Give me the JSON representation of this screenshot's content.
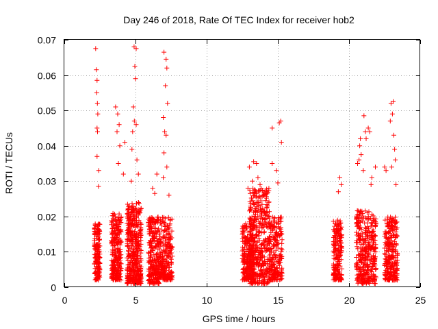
{
  "chart_data": {
    "type": "scatter",
    "title": "Day 246 of 2018, Rate Of TEC Index for receiver hob2",
    "xlabel": "GPS time / hours",
    "ylabel": "ROTI / TECUs",
    "xlim": [
      0,
      25
    ],
    "ylim": [
      0,
      0.07
    ],
    "x_ticks": [
      0,
      5,
      10,
      15,
      20,
      25
    ],
    "x_tick_labels": [
      "0",
      "5",
      "10",
      "15",
      "20",
      "25"
    ],
    "y_ticks": [
      0,
      0.01,
      0.02,
      0.03,
      0.04,
      0.05,
      0.06,
      0.07
    ],
    "y_tick_labels": [
      "0",
      "0.01",
      "0.02",
      "0.03",
      "0.04",
      "0.05",
      "0.06",
      "0.07"
    ],
    "grid": true,
    "marker": "+",
    "color": "#ff0000",
    "series": [
      {
        "name": "ROTI",
        "clusters": [
          {
            "x": [
              2.1,
              2.5
            ],
            "y": [
              0.002,
              0.018
            ],
            "n": 160
          },
          {
            "x": [
              3.3,
              4.0
            ],
            "y": [
              0.002,
              0.021
            ],
            "n": 260
          },
          {
            "x": [
              4.4,
              5.4
            ],
            "y": [
              0.001,
              0.024
            ],
            "n": 460
          },
          {
            "x": [
              5.9,
              6.7
            ],
            "y": [
              0.001,
              0.02
            ],
            "n": 260
          },
          {
            "x": [
              6.7,
              7.6
            ],
            "y": [
              0.002,
              0.02
            ],
            "n": 250
          },
          {
            "x": [
              12.5,
              13.3
            ],
            "y": [
              0.002,
              0.018
            ],
            "n": 260
          },
          {
            "x": [
              13.0,
              14.4
            ],
            "y": [
              0.001,
              0.028
            ],
            "n": 420
          },
          {
            "x": [
              14.4,
              15.3
            ],
            "y": [
              0.002,
              0.02
            ],
            "n": 220
          },
          {
            "x": [
              18.9,
              19.5
            ],
            "y": [
              0.002,
              0.019
            ],
            "n": 200
          },
          {
            "x": [
              20.5,
              21.9
            ],
            "y": [
              0.001,
              0.022
            ],
            "n": 380
          },
          {
            "x": [
              22.5,
              23.4
            ],
            "y": [
              0.002,
              0.02
            ],
            "n": 280
          }
        ],
        "outliers": [
          [
            2.2,
            0.0675
          ],
          [
            2.25,
            0.0615
          ],
          [
            2.3,
            0.0585
          ],
          [
            2.28,
            0.055
          ],
          [
            2.32,
            0.052
          ],
          [
            2.35,
            0.049
          ],
          [
            2.3,
            0.045
          ],
          [
            2.33,
            0.044
          ],
          [
            2.3,
            0.037
          ],
          [
            2.42,
            0.033
          ],
          [
            2.4,
            0.0285
          ],
          [
            3.6,
            0.051
          ],
          [
            3.75,
            0.049
          ],
          [
            3.85,
            0.046
          ],
          [
            3.7,
            0.044
          ],
          [
            3.9,
            0.04
          ],
          [
            3.8,
            0.035
          ],
          [
            4.25,
            0.041
          ],
          [
            4.15,
            0.032
          ],
          [
            4.9,
            0.068
          ],
          [
            5.05,
            0.0675
          ],
          [
            4.95,
            0.0625
          ],
          [
            5.0,
            0.059
          ],
          [
            4.85,
            0.051
          ],
          [
            4.92,
            0.047
          ],
          [
            5.05,
            0.046
          ],
          [
            4.8,
            0.044
          ],
          [
            4.75,
            0.039
          ],
          [
            5.1,
            0.036
          ],
          [
            5.2,
            0.032
          ],
          [
            4.7,
            0.03
          ],
          [
            6.5,
            0.032
          ],
          [
            6.2,
            0.028
          ],
          [
            6.35,
            0.0265
          ],
          [
            7.0,
            0.0665
          ],
          [
            7.15,
            0.0645
          ],
          [
            7.2,
            0.062
          ],
          [
            7.1,
            0.057
          ],
          [
            7.25,
            0.052
          ],
          [
            6.95,
            0.048
          ],
          [
            7.05,
            0.044
          ],
          [
            7.15,
            0.043
          ],
          [
            7.0,
            0.038
          ],
          [
            7.2,
            0.034
          ],
          [
            6.95,
            0.031
          ],
          [
            7.35,
            0.026
          ],
          [
            13.0,
            0.034
          ],
          [
            13.3,
            0.0355
          ],
          [
            13.5,
            0.035
          ],
          [
            13.6,
            0.031
          ],
          [
            12.9,
            0.028
          ],
          [
            13.2,
            0.03
          ],
          [
            13.75,
            0.029
          ],
          [
            14.6,
            0.045
          ],
          [
            15.1,
            0.0465
          ],
          [
            15.2,
            0.047
          ],
          [
            15.25,
            0.041
          ],
          [
            14.6,
            0.035
          ],
          [
            14.9,
            0.033
          ],
          [
            15.0,
            0.0295
          ],
          [
            19.35,
            0.031
          ],
          [
            19.45,
            0.029
          ],
          [
            19.25,
            0.027
          ],
          [
            20.6,
            0.035
          ],
          [
            20.7,
            0.036
          ],
          [
            20.75,
            0.04
          ],
          [
            20.8,
            0.042
          ],
          [
            20.85,
            0.0375
          ],
          [
            21.05,
            0.0485
          ],
          [
            21.15,
            0.044
          ],
          [
            21.2,
            0.042
          ],
          [
            21.35,
            0.045
          ],
          [
            21.45,
            0.044
          ],
          [
            21.0,
            0.033
          ],
          [
            21.55,
            0.029
          ],
          [
            21.85,
            0.034
          ],
          [
            21.6,
            0.031
          ],
          [
            22.5,
            0.034
          ],
          [
            22.6,
            0.033
          ],
          [
            22.95,
            0.052
          ],
          [
            23.1,
            0.0525
          ],
          [
            23.05,
            0.049
          ],
          [
            22.9,
            0.047
          ],
          [
            23.15,
            0.043
          ],
          [
            23.2,
            0.039
          ],
          [
            23.0,
            0.034
          ],
          [
            23.25,
            0.036
          ],
          [
            23.3,
            0.029
          ]
        ]
      }
    ]
  }
}
